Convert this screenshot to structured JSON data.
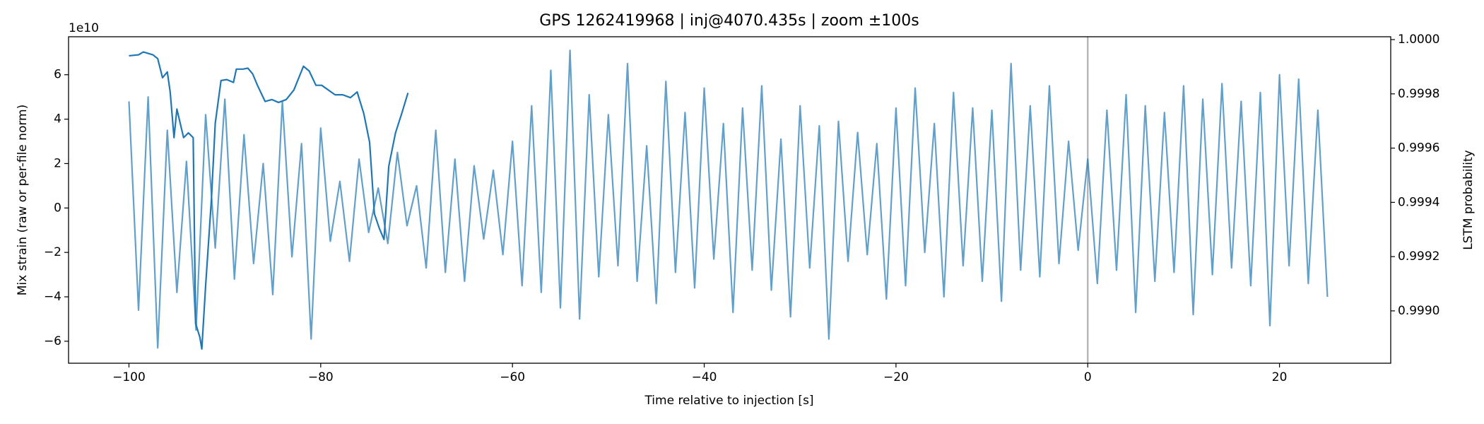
{
  "chart_data": {
    "type": "line",
    "title": "GPS 1262419968 | inj@4070.435s | zoom ±100s",
    "xlabel": "Time relative to injection [s]",
    "ylabel": "Mix strain (raw or per-file norm)",
    "y2label": "LSTM probability",
    "y_offset_label": "1e10",
    "xlim": [
      -106.3,
      31.6
    ],
    "xticks": [
      {
        "value": -100,
        "label": "−100"
      },
      {
        "value": -80,
        "label": "−80"
      },
      {
        "value": -60,
        "label": "−60"
      },
      {
        "value": -40,
        "label": "−40"
      },
      {
        "value": -20,
        "label": "−20"
      },
      0,
      20
    ],
    "ylim": [
      -6.99,
      7.71
    ],
    "yticks": [
      {
        "value": -6,
        "label": "−6"
      },
      {
        "value": -4,
        "label": "−4"
      },
      {
        "value": -2,
        "label": "−2"
      },
      0,
      2,
      4,
      6
    ],
    "y2lim": [
      0.998807,
      1.0000105
    ],
    "y2ticks": [
      {
        "value": 0.999,
        "label": "0.9990"
      },
      {
        "value": 0.9992,
        "label": "0.9992"
      },
      {
        "value": 0.9994,
        "label": "0.9994"
      },
      {
        "value": 0.9996,
        "label": "0.9996"
      },
      {
        "value": 0.9998,
        "label": "0.9998"
      },
      {
        "value": 1,
        "label": "1.0000"
      }
    ],
    "vline": 0,
    "vline_color": "#b0b0b0",
    "grid": false,
    "series": [
      {
        "color": "#1f77b4",
        "alpha": 0.7,
        "axis": "y",
        "x": [
          -100,
          -99,
          -98,
          -97,
          -96,
          -95,
          -94,
          -93,
          -92,
          -91,
          -90,
          -89,
          -88,
          -87,
          -86,
          -85,
          -84,
          -83,
          -82,
          -81,
          -80,
          -79,
          -78,
          -77,
          -76,
          -75,
          -74,
          -73,
          -72,
          -71,
          -70,
          -69,
          -68,
          -67,
          -66,
          -65,
          -64,
          -63,
          -62,
          -61,
          -60,
          -59,
          -58,
          -57,
          -56,
          -55,
          -54,
          -53,
          -52,
          -51,
          -50,
          -49,
          -48,
          -47,
          -46,
          -45,
          -44,
          -43,
          -42,
          -41,
          -40,
          -39,
          -38,
          -37,
          -36,
          -35,
          -34,
          -33,
          -32,
          -31,
          -30,
          -29,
          -28,
          -27,
          -26,
          -25,
          -24,
          -23,
          -22,
          -21,
          -20,
          -19,
          -18,
          -17,
          -16,
          -15,
          -14,
          -13,
          -12,
          -11,
          -10,
          -9,
          -8,
          -7,
          -6,
          -5,
          -4,
          -3,
          -2,
          -1,
          0,
          1,
          2,
          3,
          4,
          5,
          6,
          7,
          8,
          9,
          10,
          11,
          12,
          13,
          14,
          15,
          16,
          17,
          18,
          19,
          20,
          21,
          22,
          23,
          24,
          25
        ],
        "values": [
          4.8,
          -4.6,
          5.0,
          -6.3,
          3.5,
          -3.8,
          2.1,
          -5.5,
          4.2,
          -1.8,
          4.9,
          -3.2,
          3.3,
          -2.5,
          2.0,
          -3.9,
          4.8,
          -2.2,
          2.9,
          -5.9,
          3.6,
          -1.5,
          1.2,
          -2.4,
          2.2,
          -1.1,
          0.9,
          -1.6,
          2.5,
          -0.8,
          1.0,
          -2.7,
          3.5,
          -2.9,
          2.2,
          -3.3,
          1.9,
          -1.4,
          1.7,
          -2.1,
          3.0,
          -3.5,
          4.6,
          -3.8,
          6.2,
          -4.5,
          7.1,
          -5.0,
          5.1,
          -3.1,
          4.2,
          -2.6,
          6.5,
          -3.3,
          2.8,
          -4.3,
          5.7,
          -2.9,
          4.3,
          -3.6,
          5.4,
          -2.3,
          3.8,
          -4.7,
          4.5,
          -2.8,
          5.5,
          -3.7,
          3.1,
          -4.9,
          4.6,
          -2.7,
          3.7,
          -5.9,
          3.9,
          -2.4,
          3.4,
          -2.1,
          2.9,
          -4.1,
          4.5,
          -3.5,
          5.4,
          -2.0,
          3.8,
          -4.0,
          5.2,
          -2.6,
          4.5,
          -3.3,
          4.4,
          -4.2,
          6.5,
          -2.8,
          4.6,
          -3.1,
          5.5,
          -2.5,
          3.0,
          -1.9,
          2.2,
          -3.4,
          4.4,
          -2.8,
          5.1,
          -4.7,
          4.6,
          -3.3,
          4.3,
          -2.9,
          5.5,
          -4.8,
          4.9,
          -3.0,
          5.6,
          -2.7,
          4.8,
          -3.5,
          5.2,
          -5.3,
          6.0,
          -2.6,
          5.8,
          -3.4,
          4.4,
          -4.0
        ]
      },
      {
        "color": "#1f77b4",
        "alpha": 1,
        "axis": "y2",
        "x": [
          -100,
          -99,
          -98.5,
          -97.5,
          -97,
          -96.5,
          -96,
          -95.7,
          -95.3,
          -95,
          -94.3,
          -93.8,
          -93.3,
          -93.05,
          -92.6,
          -92.4,
          -92,
          -91.4,
          -91,
          -90.4,
          -89.8,
          -89.1,
          -88.8,
          -88.1,
          -87.6,
          -87.1,
          -86.6,
          -85.8,
          -85.1,
          -84.4,
          -83.6,
          -82.8,
          -81.8,
          -81.2,
          -80.5,
          -79.9,
          -79.2,
          -78.5,
          -77.7,
          -76.9,
          -76.2,
          -75.5,
          -74.9,
          -74.4,
          -73.9,
          -73.4,
          -72.9,
          -72.2,
          -71.5,
          -70.9
        ],
        "values": [
          0.9999404,
          0.9999439,
          0.9999544,
          0.9999439,
          0.9999298,
          0.9998596,
          0.9998807,
          0.999807,
          0.9996386,
          0.9997439,
          0.9996386,
          0.9996561,
          0.9996386,
          0.9989544,
          0.9989018,
          0.9988596,
          0.9990947,
          0.9994105,
          0.9996912,
          0.9998491,
          0.9998526,
          0.9998421,
          0.9998912,
          0.9998912,
          0.9998947,
          0.9998737,
          0.9998316,
          0.9997719,
          0.9997789,
          0.9997684,
          0.9997789,
          0.999814,
          0.9999018,
          0.9998842,
          0.9998316,
          0.9998316,
          0.999814,
          0.9997965,
          0.9997965,
          0.999786,
          0.999807,
          0.9997263,
          0.9996211,
          0.9993579,
          0.9993053,
          0.9992632,
          0.9995333,
          0.9996561,
          0.9997333,
          0.9998035
        ]
      }
    ]
  }
}
